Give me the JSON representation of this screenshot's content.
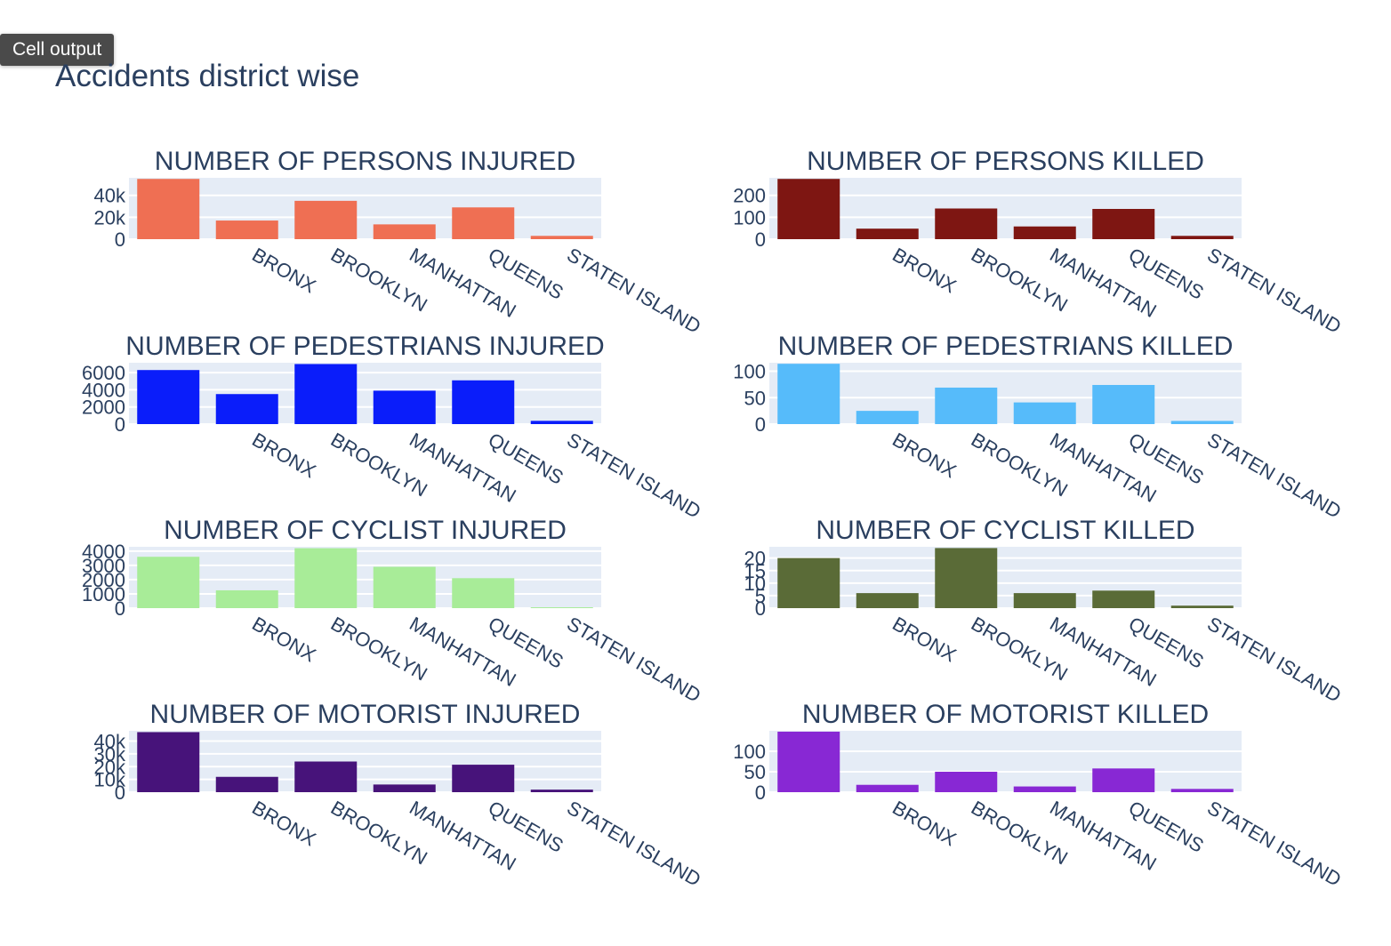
{
  "cell_output_label": "Cell output",
  "title": "Accidents district wise",
  "chart_data": [
    {
      "type": "bar",
      "title": "NUMBER OF PERSONS INJURED",
      "color": "#ef6f53",
      "categories": [
        "",
        "BRONX",
        "BROOKLYN",
        "MANHATTAN",
        "QUEENS",
        "STATEN ISLAND"
      ],
      "values": [
        55000,
        17000,
        35000,
        13500,
        29000,
        3000
      ],
      "ylim": [
        0,
        56000
      ],
      "ticks": [
        0,
        20000,
        40000
      ],
      "tick_labels": [
        "0",
        "20k",
        "40k"
      ]
    },
    {
      "type": "bar",
      "title": "NUMBER OF PERSONS KILLED",
      "color": "#7e1612",
      "categories": [
        "",
        "BRONX",
        "BROOKLYN",
        "MANHATTAN",
        "QUEENS",
        "STATEN ISLAND"
      ],
      "values": [
        275,
        48,
        140,
        58,
        138,
        15
      ],
      "ylim": [
        0,
        280
      ],
      "ticks": [
        0,
        100,
        200
      ],
      "tick_labels": [
        "0",
        "100",
        "200"
      ]
    },
    {
      "type": "bar",
      "title": "NUMBER OF PEDESTRIANS INJURED",
      "color": "#0a1dfa",
      "categories": [
        "",
        "BRONX",
        "BROOKLYN",
        "MANHATTAN",
        "QUEENS",
        "STATEN ISLAND"
      ],
      "values": [
        6300,
        3500,
        7000,
        3900,
        5100,
        380
      ],
      "ylim": [
        0,
        7150
      ],
      "ticks": [
        0,
        2000,
        4000,
        6000
      ],
      "tick_labels": [
        "0",
        "2000",
        "4000",
        "6000"
      ]
    },
    {
      "type": "bar",
      "title": "NUMBER OF PEDESTRIANS KILLED",
      "color": "#56bbfa",
      "categories": [
        "",
        "BRONX",
        "BROOKLYN",
        "MANHATTAN",
        "QUEENS",
        "STATEN ISLAND"
      ],
      "values": [
        114,
        25,
        69,
        41,
        74,
        6
      ],
      "ylim": [
        0,
        116
      ],
      "ticks": [
        0,
        50,
        100
      ],
      "tick_labels": [
        "0",
        "50",
        "100"
      ]
    },
    {
      "type": "bar",
      "title": "NUMBER OF CYCLIST INJURED",
      "color": "#a8ec98",
      "categories": [
        "",
        "BRONX",
        "BROOKLYN",
        "MANHATTAN",
        "QUEENS",
        "STATEN ISLAND"
      ],
      "values": [
        3600,
        1250,
        4200,
        2900,
        2100,
        60
      ],
      "ylim": [
        0,
        4300
      ],
      "ticks": [
        0,
        1000,
        2000,
        3000,
        4000
      ],
      "tick_labels": [
        "0",
        "1000",
        "2000",
        "3000",
        "4000"
      ]
    },
    {
      "type": "bar",
      "title": "NUMBER OF CYCLIST KILLED",
      "color": "#5a6b37",
      "categories": [
        "",
        "BRONX",
        "BROOKLYN",
        "MANHATTAN",
        "QUEENS",
        "STATEN ISLAND"
      ],
      "values": [
        20,
        6,
        24,
        6,
        7,
        1
      ],
      "ylim": [
        0,
        24.5
      ],
      "ticks": [
        0,
        5,
        10,
        15,
        20
      ],
      "tick_labels": [
        "0",
        "5",
        "10",
        "15",
        "20"
      ]
    },
    {
      "type": "bar",
      "title": "NUMBER OF MOTORIST INJURED",
      "color": "#47137a",
      "categories": [
        "",
        "BRONX",
        "BROOKLYN",
        "MANHATTAN",
        "QUEENS",
        "STATEN ISLAND"
      ],
      "values": [
        47000,
        12000,
        24000,
        6000,
        21500,
        2000
      ],
      "ylim": [
        0,
        48000
      ],
      "ticks": [
        0,
        10000,
        20000,
        30000,
        40000
      ],
      "tick_labels": [
        "0",
        "10k",
        "20k",
        "30k",
        "40k"
      ]
    },
    {
      "type": "bar",
      "title": "NUMBER OF MOTORIST KILLED",
      "color": "#8828d4",
      "categories": [
        "",
        "BRONX",
        "BROOKLYN",
        "MANHATTAN",
        "QUEENS",
        "STATEN ISLAND"
      ],
      "values": [
        148,
        18,
        50,
        14,
        58,
        8
      ],
      "ylim": [
        0,
        150
      ],
      "ticks": [
        0,
        50,
        100
      ],
      "tick_labels": [
        "0",
        "50",
        "100"
      ]
    }
  ]
}
